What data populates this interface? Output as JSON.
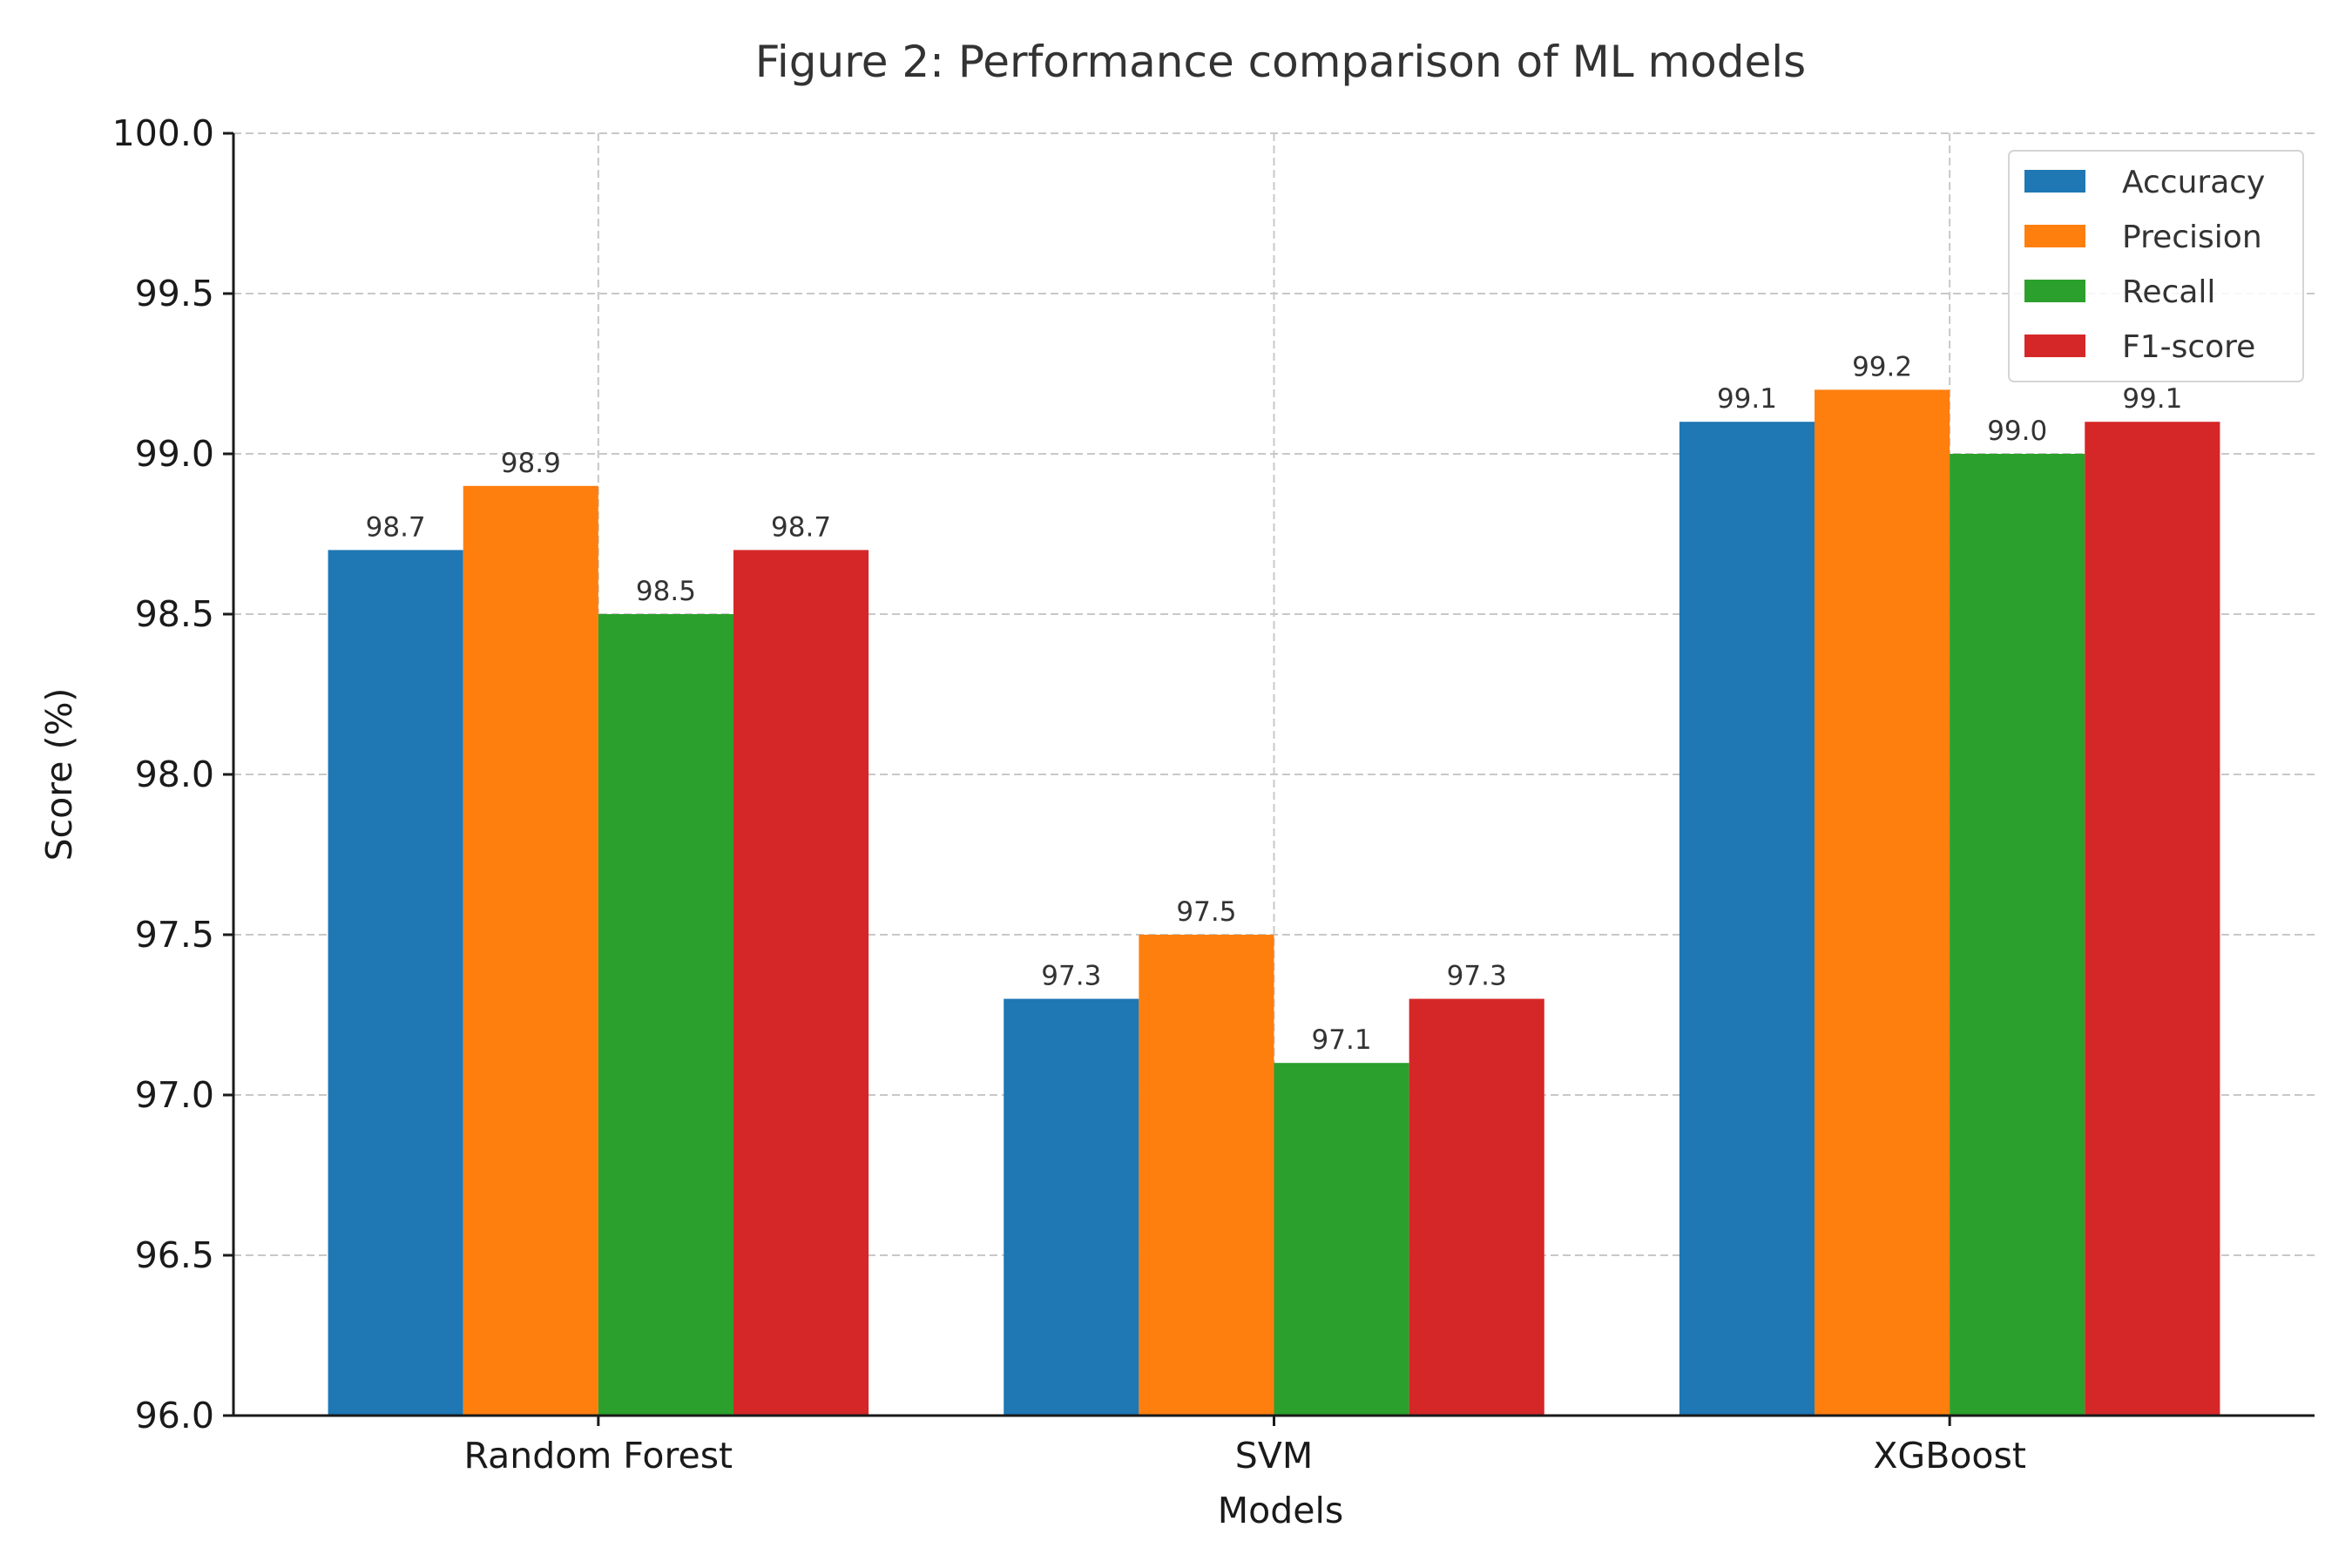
{
  "chart_data": {
    "type": "bar",
    "title": "Figure 2: Performance comparison of ML models",
    "xlabel": "Models",
    "ylabel": "Score (%)",
    "ylim": [
      96.0,
      100.0
    ],
    "yticks": [
      "96.0",
      "96.5",
      "97.0",
      "97.5",
      "98.0",
      "98.5",
      "99.0",
      "99.5",
      "100.0"
    ],
    "grid": true,
    "legend_position": "top-right",
    "categories": [
      "Random Forest",
      "SVM",
      "XGBoost"
    ],
    "series": [
      {
        "name": "Accuracy",
        "color": "#1f77b4",
        "values": [
          98.7,
          97.3,
          99.1
        ]
      },
      {
        "name": "Precision",
        "color": "#ff7f0e",
        "values": [
          98.9,
          97.5,
          99.2
        ]
      },
      {
        "name": "Recall",
        "color": "#2ca02c",
        "values": [
          98.5,
          97.1,
          99.0
        ]
      },
      {
        "name": "F1-score",
        "color": "#d62728",
        "values": [
          98.7,
          97.3,
          99.1
        ]
      }
    ]
  }
}
